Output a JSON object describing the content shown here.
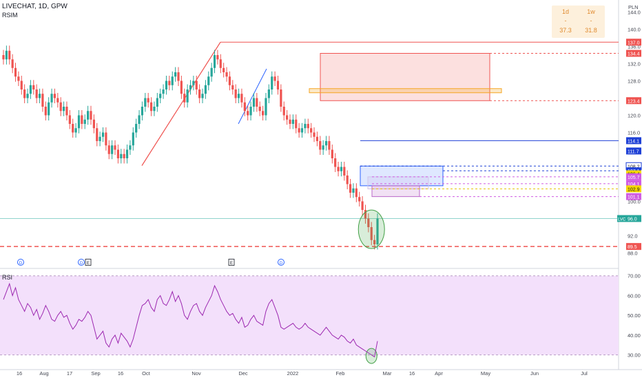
{
  "header": {
    "symbol_line": "LIVECHAT, 1D, GPW",
    "indicator": "RSIM",
    "currency": "PLN"
  },
  "info_boxes": [
    {
      "period": "1d",
      "mid": "-",
      "value": "37.3"
    },
    {
      "period": "1w",
      "mid": "-",
      "value": "31.8"
    }
  ],
  "colors": {
    "up": "#26a69a",
    "down": "#ef5350",
    "rsi": "#9c27b0",
    "rsi_band": "#f3e0fb",
    "accent": "#e08a2e"
  },
  "chart_data": [
    {
      "type": "candlestick",
      "title": "LIVECHAT, 1D, GPW",
      "price_axis_ticks": [
        "144.0",
        "140.0",
        "136.0",
        "132.0",
        "128.0",
        "120.0",
        "116.0",
        "100.0",
        "92.0",
        "88.0"
      ],
      "price_tags": [
        {
          "label": "137.0",
          "color": "#ef5350"
        },
        {
          "label": "134.4",
          "color": "#ef5350"
        },
        {
          "label": "123.4",
          "color": "#ef5350"
        },
        {
          "label": "114.1",
          "color": "#1e40d6"
        },
        {
          "label": "111.7",
          "color": "#1e40d6"
        },
        {
          "label": "108.2",
          "color": "#ffffff"
        },
        {
          "label": "107.1",
          "color": "#1e40d6"
        },
        {
          "label": "106.4",
          "color": "#f5d800"
        },
        {
          "label": "105.7",
          "color": "#d05ce3"
        },
        {
          "label": "104.1",
          "color": "#d05ce3"
        },
        {
          "label": "102.9",
          "color": "#f5d800"
        },
        {
          "label": "101.1",
          "color": "#d05ce3"
        },
        {
          "label": "96.0",
          "color": "#26a69a"
        },
        {
          "label": "89.5",
          "color": "#ef5350"
        }
      ],
      "last_price_label": "LVC",
      "ylim": [
        86,
        146
      ],
      "close": [
        133,
        135,
        133,
        131,
        129,
        128,
        126,
        124,
        125,
        127,
        126,
        124,
        125,
        122,
        120,
        123,
        125,
        124,
        123,
        121,
        122,
        120,
        118,
        116,
        117,
        120,
        118,
        119,
        121,
        119,
        117,
        114,
        115,
        116,
        113,
        111,
        113,
        112,
        110,
        111,
        110,
        112,
        113,
        116,
        118,
        120,
        122,
        124,
        123,
        121,
        122,
        124,
        125,
        126,
        128,
        127,
        129,
        130,
        128,
        125,
        123,
        126,
        127,
        128,
        126,
        124,
        125,
        127,
        129,
        131,
        134,
        133,
        131,
        130,
        129,
        127,
        126,
        124,
        125,
        123,
        121,
        120,
        122,
        124,
        122,
        121,
        120,
        124,
        126,
        129,
        128,
        126,
        122,
        120,
        119,
        118,
        119,
        117,
        116,
        117,
        118,
        117,
        116,
        115,
        114,
        112,
        113,
        114,
        112,
        110,
        108,
        107,
        108,
        106,
        104,
        102,
        103,
        101,
        100,
        98,
        96,
        94,
        91,
        90,
        96
      ],
      "rsi": {
        "label": "RSI",
        "ylim": [
          25,
          72
        ],
        "ticks": [
          "70.00",
          "60.00",
          "50.00",
          "40.00",
          "30.00"
        ],
        "levels": [
          70,
          30
        ],
        "values": [
          58,
          62,
          66,
          60,
          64,
          58,
          55,
          52,
          56,
          54,
          50,
          53,
          48,
          51,
          55,
          52,
          48,
          47,
          50,
          52,
          49,
          50,
          46,
          43,
          45,
          48,
          47,
          49,
          52,
          50,
          44,
          38,
          40,
          42,
          36,
          34,
          38,
          40,
          36,
          41,
          39,
          37,
          34,
          38,
          44,
          50,
          55,
          56,
          58,
          54,
          52,
          58,
          60,
          56,
          55,
          58,
          62,
          57,
          60,
          56,
          50,
          48,
          52,
          55,
          56,
          52,
          50,
          54,
          57,
          60,
          65,
          62,
          58,
          55,
          52,
          50,
          51,
          48,
          46,
          49,
          44,
          45,
          48,
          50,
          47,
          46,
          45,
          52,
          56,
          58,
          54,
          50,
          44,
          43,
          44,
          45,
          46,
          44,
          43,
          44,
          46,
          44,
          43,
          42,
          41,
          40,
          42,
          44,
          42,
          40,
          39,
          38,
          40,
          39,
          37,
          36,
          38,
          35,
          34,
          33,
          32,
          31,
          30,
          29,
          37
        ]
      },
      "x_ticks": [
        "16",
        "Aug",
        "17",
        "Sep",
        "16",
        "Oct",
        "Nov",
        "Dec",
        "2022",
        "Feb",
        "Mar",
        "16",
        "Apr",
        "May",
        "Jun",
        "Jul"
      ],
      "event_markers": [
        "D",
        "D",
        "E",
        "E",
        "D"
      ]
    }
  ]
}
